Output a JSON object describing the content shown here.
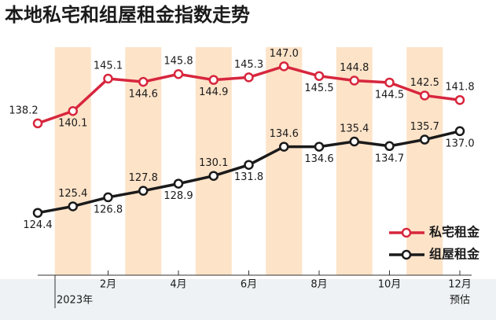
{
  "chart_data": {
    "type": "line",
    "title": "本地私宅和组屋租金指数走势",
    "categories": [
      null,
      null,
      "2月",
      null,
      "4月",
      null,
      "6月",
      null,
      "8月",
      null,
      "10月",
      null,
      "12月"
    ],
    "annotations": {
      "year": "2023年",
      "forecast": "预估"
    },
    "series": [
      {
        "name": "私宅租金",
        "color": "#d7263d",
        "values": [
          138.2,
          140.1,
          145.1,
          144.6,
          145.8,
          144.9,
          145.3,
          147.0,
          145.5,
          144.8,
          144.5,
          142.5,
          141.8
        ],
        "value_labels": [
          "138.2",
          "140.1",
          "145.1",
          "144.6",
          "145.8",
          "144.9",
          "145.3",
          "147.0",
          "145.5",
          "144.8",
          "144.5",
          "142.5",
          "141.8"
        ]
      },
      {
        "name": "组屋租金",
        "color": "#1a1a1a",
        "values": [
          124.4,
          125.4,
          126.8,
          127.8,
          128.9,
          130.1,
          131.8,
          134.6,
          134.6,
          135.4,
          134.7,
          135.7,
          137.0
        ],
        "value_labels": [
          "124.4",
          "125.4",
          "126.8",
          "127.8",
          "128.9",
          "130.1",
          "131.8",
          "134.6",
          "134.6",
          "135.4",
          "134.7",
          "135.7",
          "137.0"
        ]
      }
    ],
    "ylim": [
      120,
      150
    ],
    "legend": "lower right"
  }
}
